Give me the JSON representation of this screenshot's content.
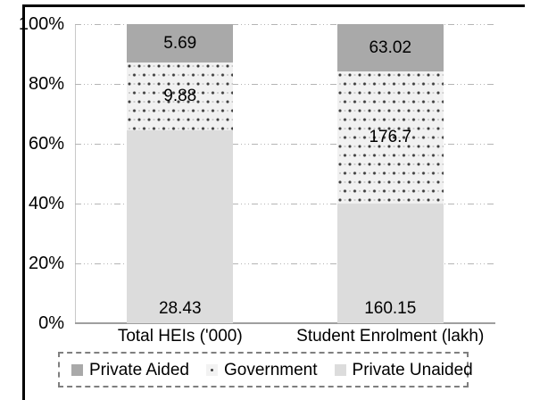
{
  "chart_data": {
    "type": "bar",
    "subtype": "stacked-100-percent-column",
    "categories": [
      "Total HEIs ('000)",
      "Student Enrolment (lakh)"
    ],
    "series": [
      {
        "name": "Private Aided",
        "values": [
          5.69,
          63.02
        ],
        "labels": [
          "5.69",
          "63.02"
        ],
        "color": "#a9a9a9",
        "pattern": "solid",
        "label_position": "center"
      },
      {
        "name": "Government",
        "values": [
          9.88,
          176.7
        ],
        "labels": [
          "9.88",
          "176.7"
        ],
        "color": "#f1f1f1",
        "pattern": "dots",
        "label_position": "center"
      },
      {
        "name": "Private Unaided",
        "values": [
          28.43,
          160.15
        ],
        "labels": [
          "28.43",
          "160.15"
        ],
        "color": "#dcdcdc",
        "pattern": "solid",
        "label_position": "inside-base"
      }
    ],
    "stack_order_note": "series listed top-to-bottom as drawn in each column",
    "y_ticks": [
      "100%",
      "80%",
      "60%",
      "40%",
      "20%",
      "0%"
    ],
    "ylim": [
      0,
      100
    ],
    "grid": true,
    "gridline_color": "#b5b5b5",
    "axis_color": "#9f9f9f",
    "legend_position": "bottom",
    "legend_items": [
      "Private Aided",
      "Government",
      "Private Unaided"
    ],
    "frame_border_color": "#000000"
  }
}
